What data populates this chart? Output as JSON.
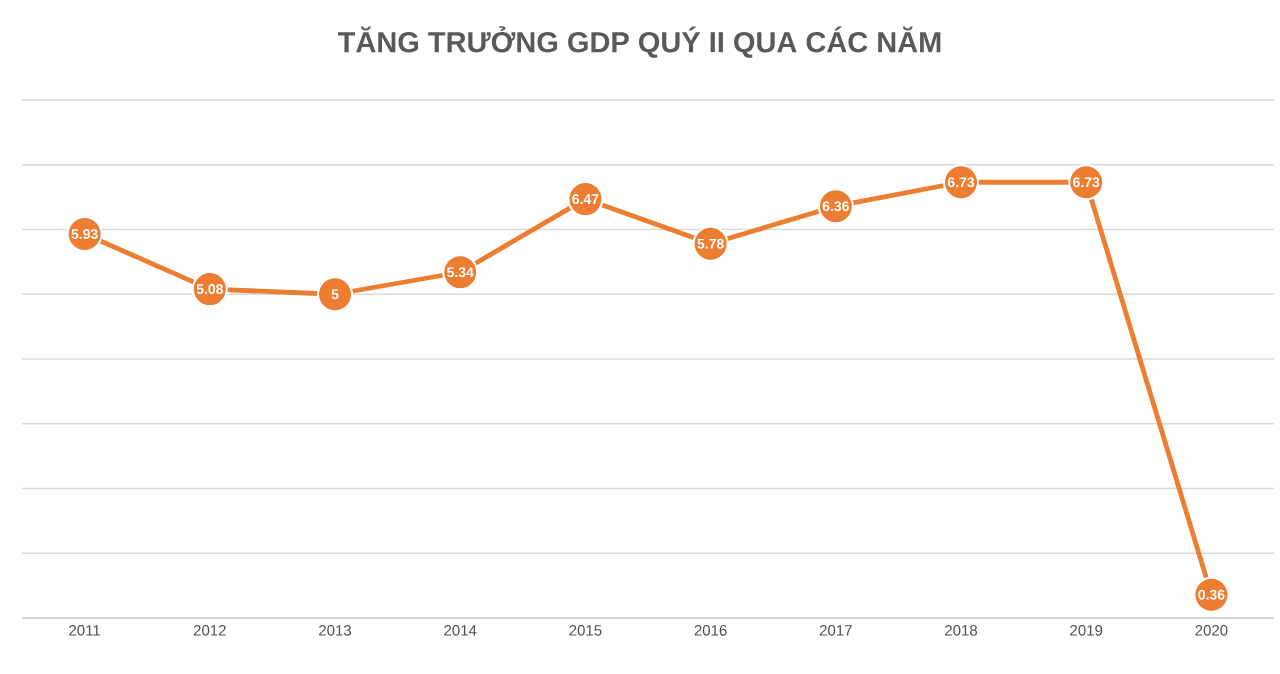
{
  "chart_data": {
    "type": "line",
    "title": "TĂNG TRƯỞNG GDP QUÝ II QUA CÁC NĂM",
    "categories": [
      "2011",
      "2012",
      "2013",
      "2014",
      "2015",
      "2016",
      "2017",
      "2018",
      "2019",
      "2020"
    ],
    "values": [
      5.93,
      5.08,
      5,
      5.34,
      6.47,
      5.78,
      6.36,
      6.73,
      6.73,
      0.36
    ],
    "color": "#ed7d31",
    "marker": "circle",
    "line_style": "solid",
    "data_labels": true,
    "ylim": [
      0,
      8
    ],
    "yticks": [
      {
        "value": 0,
        "label": null
      },
      {
        "value": 1,
        "label": null
      },
      {
        "value": 2,
        "label": null
      },
      {
        "value": 3,
        "label": null
      },
      {
        "value": 4,
        "label": null
      },
      {
        "value": 5,
        "label": null
      },
      {
        "value": 6,
        "label": null
      },
      {
        "value": 7,
        "label": null
      },
      {
        "value": 8,
        "label": null
      }
    ],
    "tick_labels": "x",
    "grid": "y"
  }
}
